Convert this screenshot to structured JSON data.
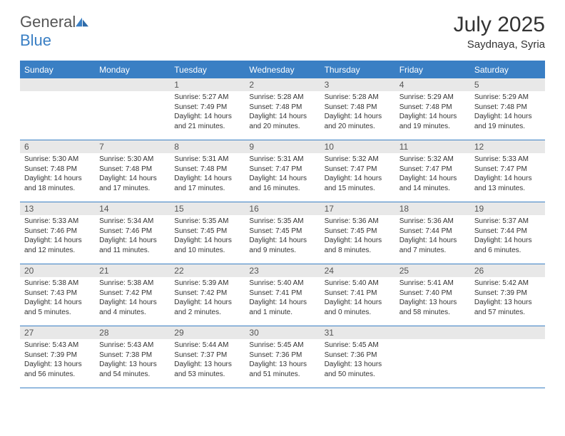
{
  "logo": {
    "text1": "General",
    "text2": "Blue"
  },
  "title": "July 2025",
  "subtitle": "Saydnaya, Syria",
  "colors": {
    "header_bg": "#3a7fc4",
    "header_text": "#ffffff",
    "num_bg": "#e8e8e8",
    "border": "#3a7fc4",
    "body_text": "#333333"
  },
  "day_names": [
    "Sunday",
    "Monday",
    "Tuesday",
    "Wednesday",
    "Thursday",
    "Friday",
    "Saturday"
  ],
  "weeks": [
    [
      null,
      null,
      {
        "n": "1",
        "sunrise": "5:27 AM",
        "sunset": "7:49 PM",
        "daylight": "14 hours and 21 minutes."
      },
      {
        "n": "2",
        "sunrise": "5:28 AM",
        "sunset": "7:48 PM",
        "daylight": "14 hours and 20 minutes."
      },
      {
        "n": "3",
        "sunrise": "5:28 AM",
        "sunset": "7:48 PM",
        "daylight": "14 hours and 20 minutes."
      },
      {
        "n": "4",
        "sunrise": "5:29 AM",
        "sunset": "7:48 PM",
        "daylight": "14 hours and 19 minutes."
      },
      {
        "n": "5",
        "sunrise": "5:29 AM",
        "sunset": "7:48 PM",
        "daylight": "14 hours and 19 minutes."
      }
    ],
    [
      {
        "n": "6",
        "sunrise": "5:30 AM",
        "sunset": "7:48 PM",
        "daylight": "14 hours and 18 minutes."
      },
      {
        "n": "7",
        "sunrise": "5:30 AM",
        "sunset": "7:48 PM",
        "daylight": "14 hours and 17 minutes."
      },
      {
        "n": "8",
        "sunrise": "5:31 AM",
        "sunset": "7:48 PM",
        "daylight": "14 hours and 17 minutes."
      },
      {
        "n": "9",
        "sunrise": "5:31 AM",
        "sunset": "7:47 PM",
        "daylight": "14 hours and 16 minutes."
      },
      {
        "n": "10",
        "sunrise": "5:32 AM",
        "sunset": "7:47 PM",
        "daylight": "14 hours and 15 minutes."
      },
      {
        "n": "11",
        "sunrise": "5:32 AM",
        "sunset": "7:47 PM",
        "daylight": "14 hours and 14 minutes."
      },
      {
        "n": "12",
        "sunrise": "5:33 AM",
        "sunset": "7:47 PM",
        "daylight": "14 hours and 13 minutes."
      }
    ],
    [
      {
        "n": "13",
        "sunrise": "5:33 AM",
        "sunset": "7:46 PM",
        "daylight": "14 hours and 12 minutes."
      },
      {
        "n": "14",
        "sunrise": "5:34 AM",
        "sunset": "7:46 PM",
        "daylight": "14 hours and 11 minutes."
      },
      {
        "n": "15",
        "sunrise": "5:35 AM",
        "sunset": "7:45 PM",
        "daylight": "14 hours and 10 minutes."
      },
      {
        "n": "16",
        "sunrise": "5:35 AM",
        "sunset": "7:45 PM",
        "daylight": "14 hours and 9 minutes."
      },
      {
        "n": "17",
        "sunrise": "5:36 AM",
        "sunset": "7:45 PM",
        "daylight": "14 hours and 8 minutes."
      },
      {
        "n": "18",
        "sunrise": "5:36 AM",
        "sunset": "7:44 PM",
        "daylight": "14 hours and 7 minutes."
      },
      {
        "n": "19",
        "sunrise": "5:37 AM",
        "sunset": "7:44 PM",
        "daylight": "14 hours and 6 minutes."
      }
    ],
    [
      {
        "n": "20",
        "sunrise": "5:38 AM",
        "sunset": "7:43 PM",
        "daylight": "14 hours and 5 minutes."
      },
      {
        "n": "21",
        "sunrise": "5:38 AM",
        "sunset": "7:42 PM",
        "daylight": "14 hours and 4 minutes."
      },
      {
        "n": "22",
        "sunrise": "5:39 AM",
        "sunset": "7:42 PM",
        "daylight": "14 hours and 2 minutes."
      },
      {
        "n": "23",
        "sunrise": "5:40 AM",
        "sunset": "7:41 PM",
        "daylight": "14 hours and 1 minute."
      },
      {
        "n": "24",
        "sunrise": "5:40 AM",
        "sunset": "7:41 PM",
        "daylight": "14 hours and 0 minutes."
      },
      {
        "n": "25",
        "sunrise": "5:41 AM",
        "sunset": "7:40 PM",
        "daylight": "13 hours and 58 minutes."
      },
      {
        "n": "26",
        "sunrise": "5:42 AM",
        "sunset": "7:39 PM",
        "daylight": "13 hours and 57 minutes."
      }
    ],
    [
      {
        "n": "27",
        "sunrise": "5:43 AM",
        "sunset": "7:39 PM",
        "daylight": "13 hours and 56 minutes."
      },
      {
        "n": "28",
        "sunrise": "5:43 AM",
        "sunset": "7:38 PM",
        "daylight": "13 hours and 54 minutes."
      },
      {
        "n": "29",
        "sunrise": "5:44 AM",
        "sunset": "7:37 PM",
        "daylight": "13 hours and 53 minutes."
      },
      {
        "n": "30",
        "sunrise": "5:45 AM",
        "sunset": "7:36 PM",
        "daylight": "13 hours and 51 minutes."
      },
      {
        "n": "31",
        "sunrise": "5:45 AM",
        "sunset": "7:36 PM",
        "daylight": "13 hours and 50 minutes."
      },
      null,
      null
    ]
  ],
  "labels": {
    "sunrise": "Sunrise:",
    "sunset": "Sunset:",
    "daylight": "Daylight:"
  }
}
